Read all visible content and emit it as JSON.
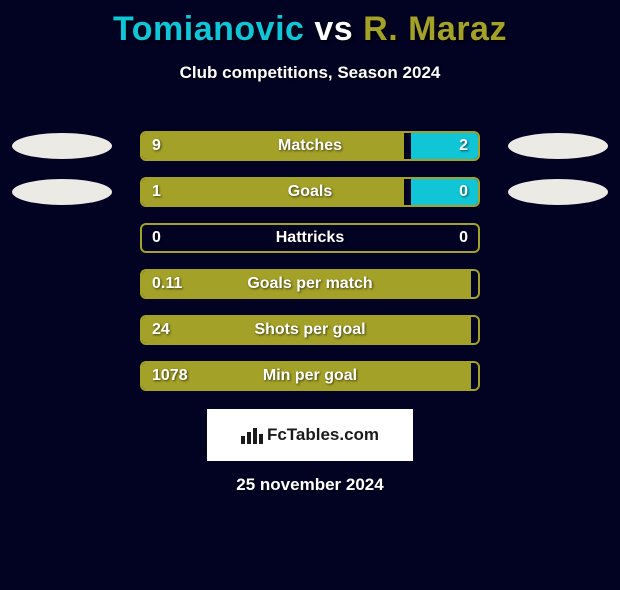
{
  "title_left": "Tomianovic",
  "title_mid": " vs ",
  "title_right": "R. Maraz",
  "title_color_left": "#0fc5d6",
  "title_color_right": "#a3a128",
  "subtitle": "Club competitions, Season 2024",
  "date": "25 november 2024",
  "logo_text": "FcTables.com",
  "left_color": "#a3a128",
  "right_color": "#0fc5d6",
  "avatar_color": "#eceae5",
  "rows": [
    {
      "label": "Matches",
      "left": "9",
      "right": "2",
      "left_pct": 78,
      "right_pct": 20,
      "avL": true,
      "avR": true
    },
    {
      "label": "Goals",
      "left": "1",
      "right": "0",
      "left_pct": 78,
      "right_pct": 20,
      "avL": true,
      "avR": true
    },
    {
      "label": "Hattricks",
      "left": "0",
      "right": "0",
      "left_pct": 0,
      "right_pct": 0,
      "avL": false,
      "avR": false
    },
    {
      "label": "Goals per match",
      "left": "0.11",
      "right": "",
      "left_pct": 98,
      "right_pct": 0,
      "avL": false,
      "avR": false
    },
    {
      "label": "Shots per goal",
      "left": "24",
      "right": "",
      "left_pct": 98,
      "right_pct": 0,
      "avL": false,
      "avR": false
    },
    {
      "label": "Min per goal",
      "left": "1078",
      "right": "",
      "left_pct": 98,
      "right_pct": 0,
      "avL": false,
      "avR": false
    }
  ]
}
